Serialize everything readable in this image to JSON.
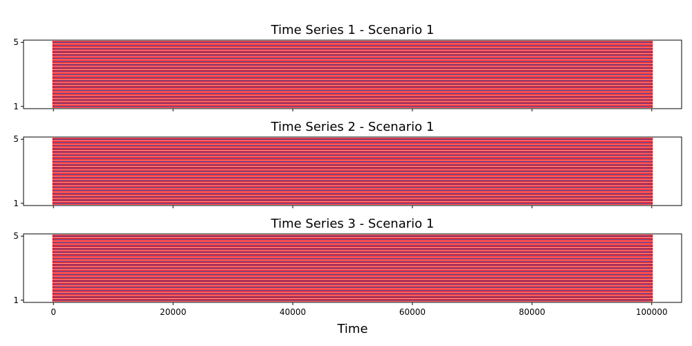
{
  "chart_data": [
    {
      "type": "line",
      "title": "Time Series 1 - Scenario 1",
      "xlim": [
        -5000,
        105000
      ],
      "ylim": [
        0.86,
        5.14
      ],
      "yticks": [
        1,
        5
      ],
      "x_range": [
        0,
        100000
      ],
      "y_values": [
        1,
        1.2,
        1.4,
        1.6,
        1.8,
        2,
        2.2,
        2.4,
        2.6,
        2.8,
        3,
        3.2,
        3.4,
        3.6,
        3.8,
        4,
        4.2,
        4.4,
        4.6,
        4.8,
        5
      ],
      "marker_color": "#ff0000",
      "line_color": "#4a72c4"
    },
    {
      "type": "line",
      "title": "Time Series 2 - Scenario 1",
      "xlim": [
        -5000,
        105000
      ],
      "ylim": [
        0.86,
        5.14
      ],
      "yticks": [
        1,
        5
      ],
      "x_range": [
        0,
        100000
      ],
      "y_values": [
        1,
        1.2,
        1.4,
        1.6,
        1.8,
        2,
        2.2,
        2.4,
        2.6,
        2.8,
        3,
        3.2,
        3.4,
        3.6,
        3.8,
        4,
        4.2,
        4.4,
        4.6,
        4.8,
        5
      ],
      "marker_color": "#ff0000",
      "line_color": "#4a72c4"
    },
    {
      "type": "line",
      "title": "Time Series 3 - Scenario 1",
      "xlim": [
        -5000,
        105000
      ],
      "ylim": [
        0.86,
        5.14
      ],
      "yticks": [
        1,
        5
      ],
      "x_range": [
        0,
        100000
      ],
      "y_values": [
        1,
        1.2,
        1.4,
        1.6,
        1.8,
        2,
        2.2,
        2.4,
        2.6,
        2.8,
        3,
        3.2,
        3.4,
        3.6,
        3.8,
        4,
        4.2,
        4.4,
        4.6,
        4.8,
        5
      ],
      "marker_color": "#ff0000",
      "line_color": "#4a72c4",
      "xticks": [
        0,
        20000,
        40000,
        60000,
        80000,
        100000
      ],
      "xlabel": "Time"
    }
  ]
}
